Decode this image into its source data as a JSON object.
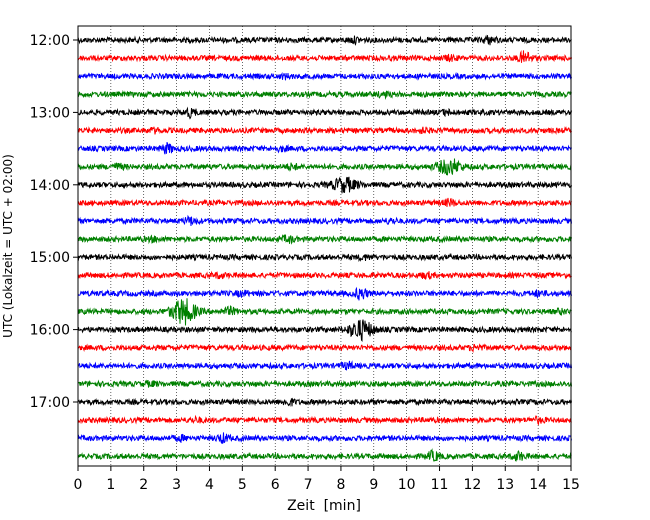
{
  "chart_data": {
    "type": "line",
    "title": "",
    "xlabel": "Zeit  [min]",
    "ylabel": "UTC (Lokalzeit = UTC + 02:00)",
    "xlim": [
      0,
      15
    ],
    "x_ticks": [
      "0",
      "1",
      "2",
      "3",
      "4",
      "5",
      "6",
      "7",
      "8",
      "9",
      "10",
      "11",
      "12",
      "13",
      "14",
      "15"
    ],
    "y_ticks": [
      {
        "label": "12:00",
        "row": 0
      },
      {
        "label": "13:00",
        "row": 4
      },
      {
        "label": "14:00",
        "row": 8
      },
      {
        "label": "15:00",
        "row": 12
      },
      {
        "label": "16:00",
        "row": 16
      },
      {
        "label": "17:00",
        "row": 20
      }
    ],
    "grid": "vertical-dotted",
    "row_colors": [
      "#000000",
      "#ff0000",
      "#0000ff",
      "#008000"
    ],
    "rows": [
      {
        "start": "12:00",
        "events": [
          {
            "t": 8.4,
            "a": 2.0
          },
          {
            "t": 12.5,
            "a": 3.0
          }
        ]
      },
      {
        "start": "12:15",
        "events": [
          {
            "t": 11.3,
            "a": 1.8
          },
          {
            "t": 13.6,
            "a": 6.0
          }
        ]
      },
      {
        "start": "12:30",
        "events": [
          {
            "t": 6.3,
            "a": 1.5
          }
        ]
      },
      {
        "start": "12:45",
        "events": [
          {
            "t": 9.3,
            "a": 1.8
          }
        ]
      },
      {
        "start": "13:00",
        "events": [
          {
            "t": 3.4,
            "a": 3.5
          },
          {
            "t": 11.2,
            "a": 1.5
          }
        ]
      },
      {
        "start": "13:15",
        "events": [
          {
            "t": 2.3,
            "a": 1.5
          },
          {
            "t": 10.5,
            "a": 1.5
          }
        ]
      },
      {
        "start": "13:30",
        "events": [
          {
            "t": 2.7,
            "a": 4.0
          },
          {
            "t": 6.2,
            "a": 1.5
          }
        ]
      },
      {
        "start": "13:45",
        "events": [
          {
            "t": 1.2,
            "a": 2.0
          },
          {
            "t": 6.5,
            "a": 2.0
          },
          {
            "t": 11.3,
            "a": 7.0
          }
        ]
      },
      {
        "start": "14:00",
        "events": [
          {
            "t": 8.1,
            "a": 6.5
          }
        ]
      },
      {
        "start": "14:15",
        "events": [
          {
            "t": 11.3,
            "a": 2.5
          }
        ]
      },
      {
        "start": "14:30",
        "events": [
          {
            "t": 3.4,
            "a": 3.0
          },
          {
            "t": 9.5,
            "a": 1.5
          }
        ]
      },
      {
        "start": "14:45",
        "events": [
          {
            "t": 2.3,
            "a": 1.5
          },
          {
            "t": 6.4,
            "a": 2.5
          }
        ]
      },
      {
        "start": "15:00",
        "events": [
          {
            "t": 8.7,
            "a": 1.5
          }
        ]
      },
      {
        "start": "15:15",
        "events": [
          {
            "t": 4.3,
            "a": 1.5
          },
          {
            "t": 10.6,
            "a": 2.0
          }
        ]
      },
      {
        "start": "15:30",
        "events": [
          {
            "t": 5.0,
            "a": 1.8
          },
          {
            "t": 8.6,
            "a": 5.0
          },
          {
            "t": 14.0,
            "a": 2.0
          }
        ]
      },
      {
        "start": "15:45",
        "events": [
          {
            "t": 3.2,
            "a": 12.0
          },
          {
            "t": 4.6,
            "a": 3.0
          },
          {
            "t": 14.7,
            "a": 1.5
          }
        ]
      },
      {
        "start": "16:00",
        "events": [
          {
            "t": 8.6,
            "a": 9.0
          }
        ]
      },
      {
        "start": "16:15",
        "events": [
          {
            "t": 12.1,
            "a": 2.0
          }
        ]
      },
      {
        "start": "16:30",
        "events": [
          {
            "t": 8.2,
            "a": 2.5
          }
        ]
      },
      {
        "start": "16:45",
        "events": [
          {
            "t": 2.2,
            "a": 1.5
          }
        ]
      },
      {
        "start": "17:00",
        "events": [
          {
            "t": 6.4,
            "a": 2.5
          }
        ]
      },
      {
        "start": "17:15",
        "events": [
          {
            "t": 3.6,
            "a": 1.5
          },
          {
            "t": 14.0,
            "a": 1.8
          }
        ]
      },
      {
        "start": "17:30",
        "events": [
          {
            "t": 3.1,
            "a": 1.8
          },
          {
            "t": 4.4,
            "a": 3.5
          }
        ]
      },
      {
        "start": "17:45",
        "events": [
          {
            "t": 10.8,
            "a": 4.0
          },
          {
            "t": 13.4,
            "a": 3.5
          }
        ]
      }
    ]
  }
}
